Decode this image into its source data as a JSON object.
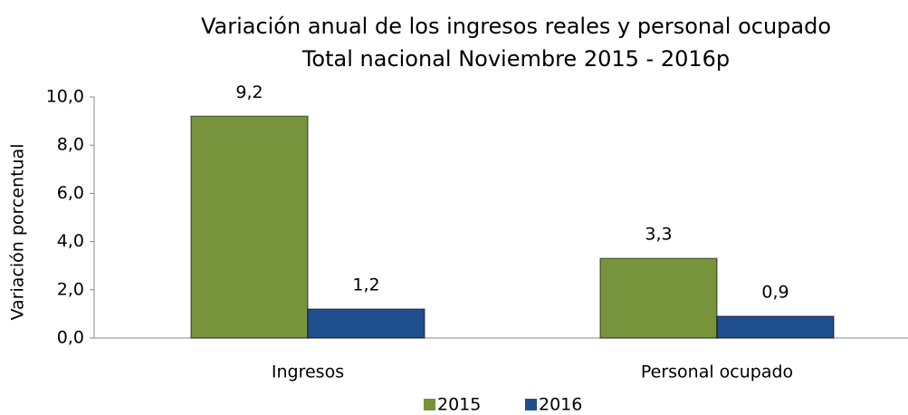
{
  "chart_data": {
    "type": "bar",
    "title": "Variación anual de los ingresos reales y personal ocupado",
    "subtitle": "Total nacional Noviembre 2015 - 2016p",
    "y_label": "Variación porcentual",
    "categories": [
      "Ingresos",
      "Personal ocupado"
    ],
    "series": [
      {
        "name": "2015",
        "color": "#77933c",
        "values": [
          9.2,
          3.3
        ],
        "value_labels": [
          "9,2",
          "3,3"
        ]
      },
      {
        "name": "2016",
        "color": "#1f4e8c",
        "values": [
          1.2,
          0.9
        ],
        "value_labels": [
          "1,2",
          "0,9"
        ]
      }
    ],
    "ylim": [
      0,
      10
    ],
    "yticks": [
      {
        "value": 0,
        "label": "0,0"
      },
      {
        "value": 2,
        "label": "2,0"
      },
      {
        "value": 4,
        "label": "4,0"
      },
      {
        "value": 6,
        "label": "6,0"
      },
      {
        "value": 8,
        "label": "8,0"
      },
      {
        "value": 10,
        "label": "10,0"
      }
    ],
    "legend": "bottom"
  }
}
